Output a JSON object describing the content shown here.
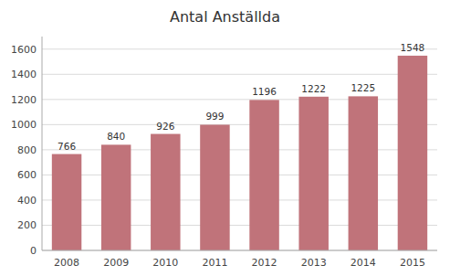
{
  "chart_data": {
    "type": "bar",
    "title": "Antal Anställda",
    "categories": [
      "2008",
      "2009",
      "2010",
      "2011",
      "2012",
      "2013",
      "2014",
      "2015"
    ],
    "values": [
      766,
      840,
      926,
      999,
      1196,
      1222,
      1225,
      1548
    ],
    "color": "#c0737a",
    "ylim": [
      0,
      1700
    ],
    "yticks": [
      0,
      200,
      400,
      600,
      800,
      1000,
      1200,
      1400,
      1600
    ],
    "grid": true,
    "data_labels": true
  }
}
